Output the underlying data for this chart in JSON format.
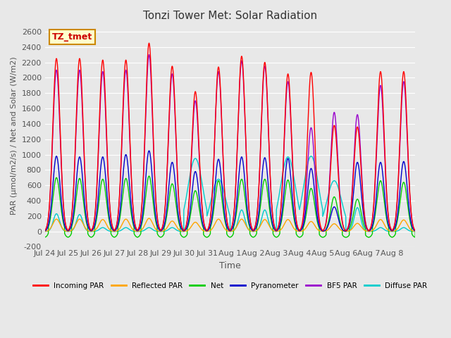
{
  "title": "Tonzi Tower Met: Solar Radiation",
  "ylabel": "PAR (μmol/m2/s) / Net and Solar (W/m2)",
  "xlabel": "Time",
  "annotation": "TZ_tmet",
  "ylim": [
    -200,
    2700
  ],
  "yticks": [
    -200,
    0,
    200,
    400,
    600,
    800,
    1000,
    1200,
    1400,
    1600,
    1800,
    2000,
    2200,
    2400,
    2600
  ],
  "bg_color": "#e8e8e8",
  "colors": {
    "incoming_par": "#ff0000",
    "reflected_par": "#ffa500",
    "net": "#00cc00",
    "pyranometer": "#0000cc",
    "bf5_par": "#9900cc",
    "diffuse_par": "#00cccc"
  },
  "legend": [
    {
      "label": "Incoming PAR",
      "color": "#ff0000"
    },
    {
      "label": "Reflected PAR",
      "color": "#ffa500"
    },
    {
      "label": "Net",
      "color": "#00cc00"
    },
    {
      "label": "Pyranometer",
      "color": "#0000cc"
    },
    {
      "label": "BF5 PAR",
      "color": "#9900cc"
    },
    {
      "label": "Diffuse PAR",
      "color": "#00cccc"
    }
  ],
  "x_tick_labels": [
    "Jul 24",
    "Jul 25",
    "Jul 26",
    "Jul 27",
    "Jul 28",
    "Jul 29",
    "Jul 30",
    "Jul 31",
    "Aug 1",
    "Aug 2",
    "Aug 3",
    "Aug 4",
    "Aug 5",
    "Aug 6",
    "Aug 7",
    "Aug 8"
  ],
  "days": 16,
  "pts_per_day": 288,
  "day_peaks_incoming": [
    2250,
    2250,
    2230,
    2230,
    2450,
    2150,
    1820,
    2140,
    2280,
    2200,
    2050,
    2070,
    1380,
    1360,
    2080,
    2080
  ],
  "day_peaks_bf5": [
    2100,
    2100,
    2080,
    2100,
    2300,
    2050,
    1700,
    2080,
    2220,
    2150,
    1950,
    1350,
    1550,
    1520,
    1900,
    1950
  ],
  "day_peaks_pyranometer": [
    980,
    970,
    970,
    1000,
    1050,
    900,
    780,
    940,
    970,
    960,
    950,
    820,
    320,
    900,
    900,
    910
  ],
  "day_peaks_net": [
    700,
    690,
    680,
    690,
    720,
    620,
    530,
    660,
    680,
    680,
    670,
    560,
    450,
    420,
    660,
    640
  ],
  "day_peaks_reflected": [
    160,
    160,
    155,
    160,
    170,
    135,
    120,
    160,
    160,
    155,
    155,
    130,
    100,
    105,
    155,
    150
  ],
  "day_peaks_diffuse": [
    230,
    220,
    50,
    50,
    50,
    50,
    950,
    680,
    280,
    280,
    970,
    980,
    660,
    310,
    50,
    50
  ]
}
